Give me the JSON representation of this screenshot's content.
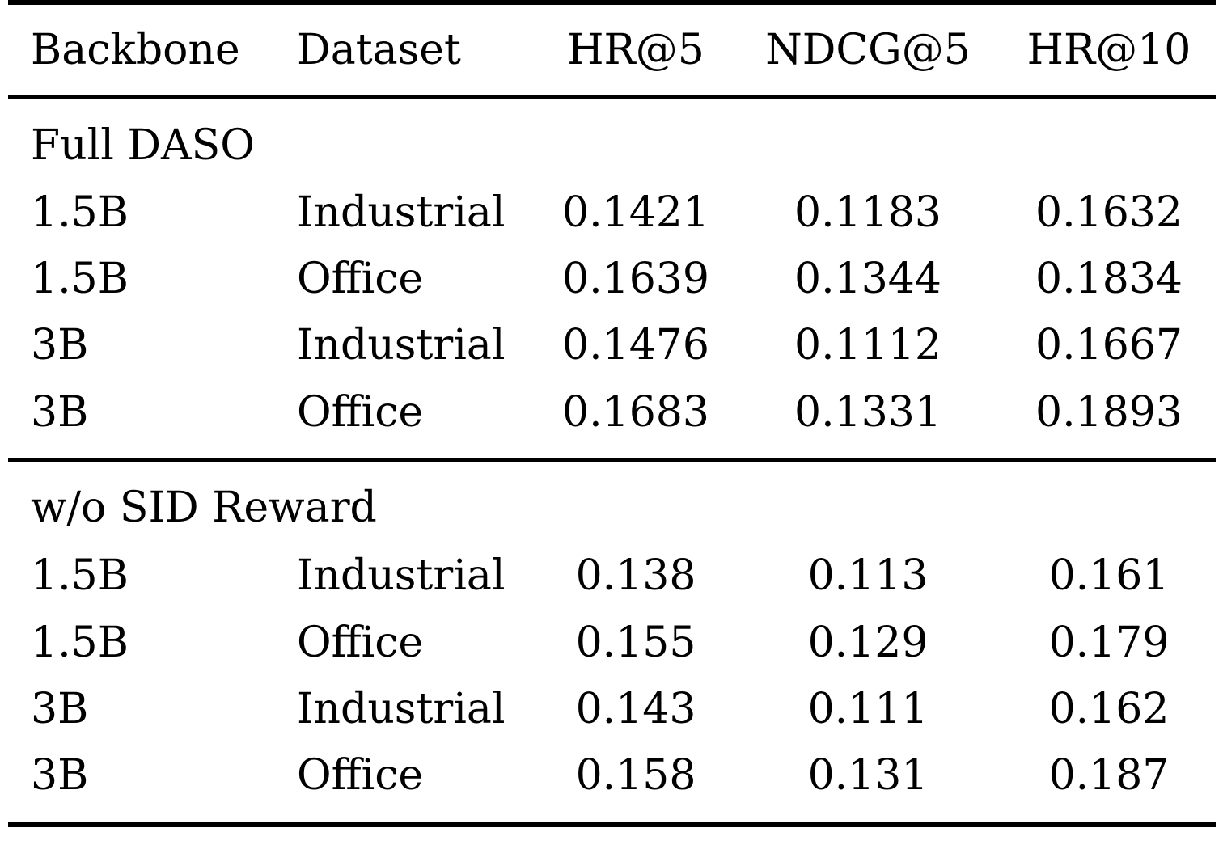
{
  "table": {
    "headers": [
      "Backbone",
      "Dataset",
      "HR@5",
      "NDCG@5",
      "HR@10"
    ],
    "sections": [
      {
        "title": "Full DASO",
        "rows": [
          [
            "1.5B",
            "Industrial",
            "0.1421",
            "0.1183",
            "0.1632"
          ],
          [
            "1.5B",
            "Office",
            "0.1639",
            "0.1344",
            "0.1834"
          ],
          [
            "3B",
            "Industrial",
            "0.1476",
            "0.1112",
            "0.1667"
          ],
          [
            "3B",
            "Office",
            "0.1683",
            "0.1331",
            "0.1893"
          ]
        ]
      },
      {
        "title": "w/o SID Reward",
        "rows": [
          [
            "1.5B",
            "Industrial",
            "0.138",
            "0.113",
            "0.161"
          ],
          [
            "1.5B",
            "Office",
            "0.155",
            "0.129",
            "0.179"
          ],
          [
            "3B",
            "Industrial",
            "0.143",
            "0.111",
            "0.162"
          ],
          [
            "3B",
            "Office",
            "0.158",
            "0.131",
            "0.187"
          ]
        ]
      }
    ]
  }
}
